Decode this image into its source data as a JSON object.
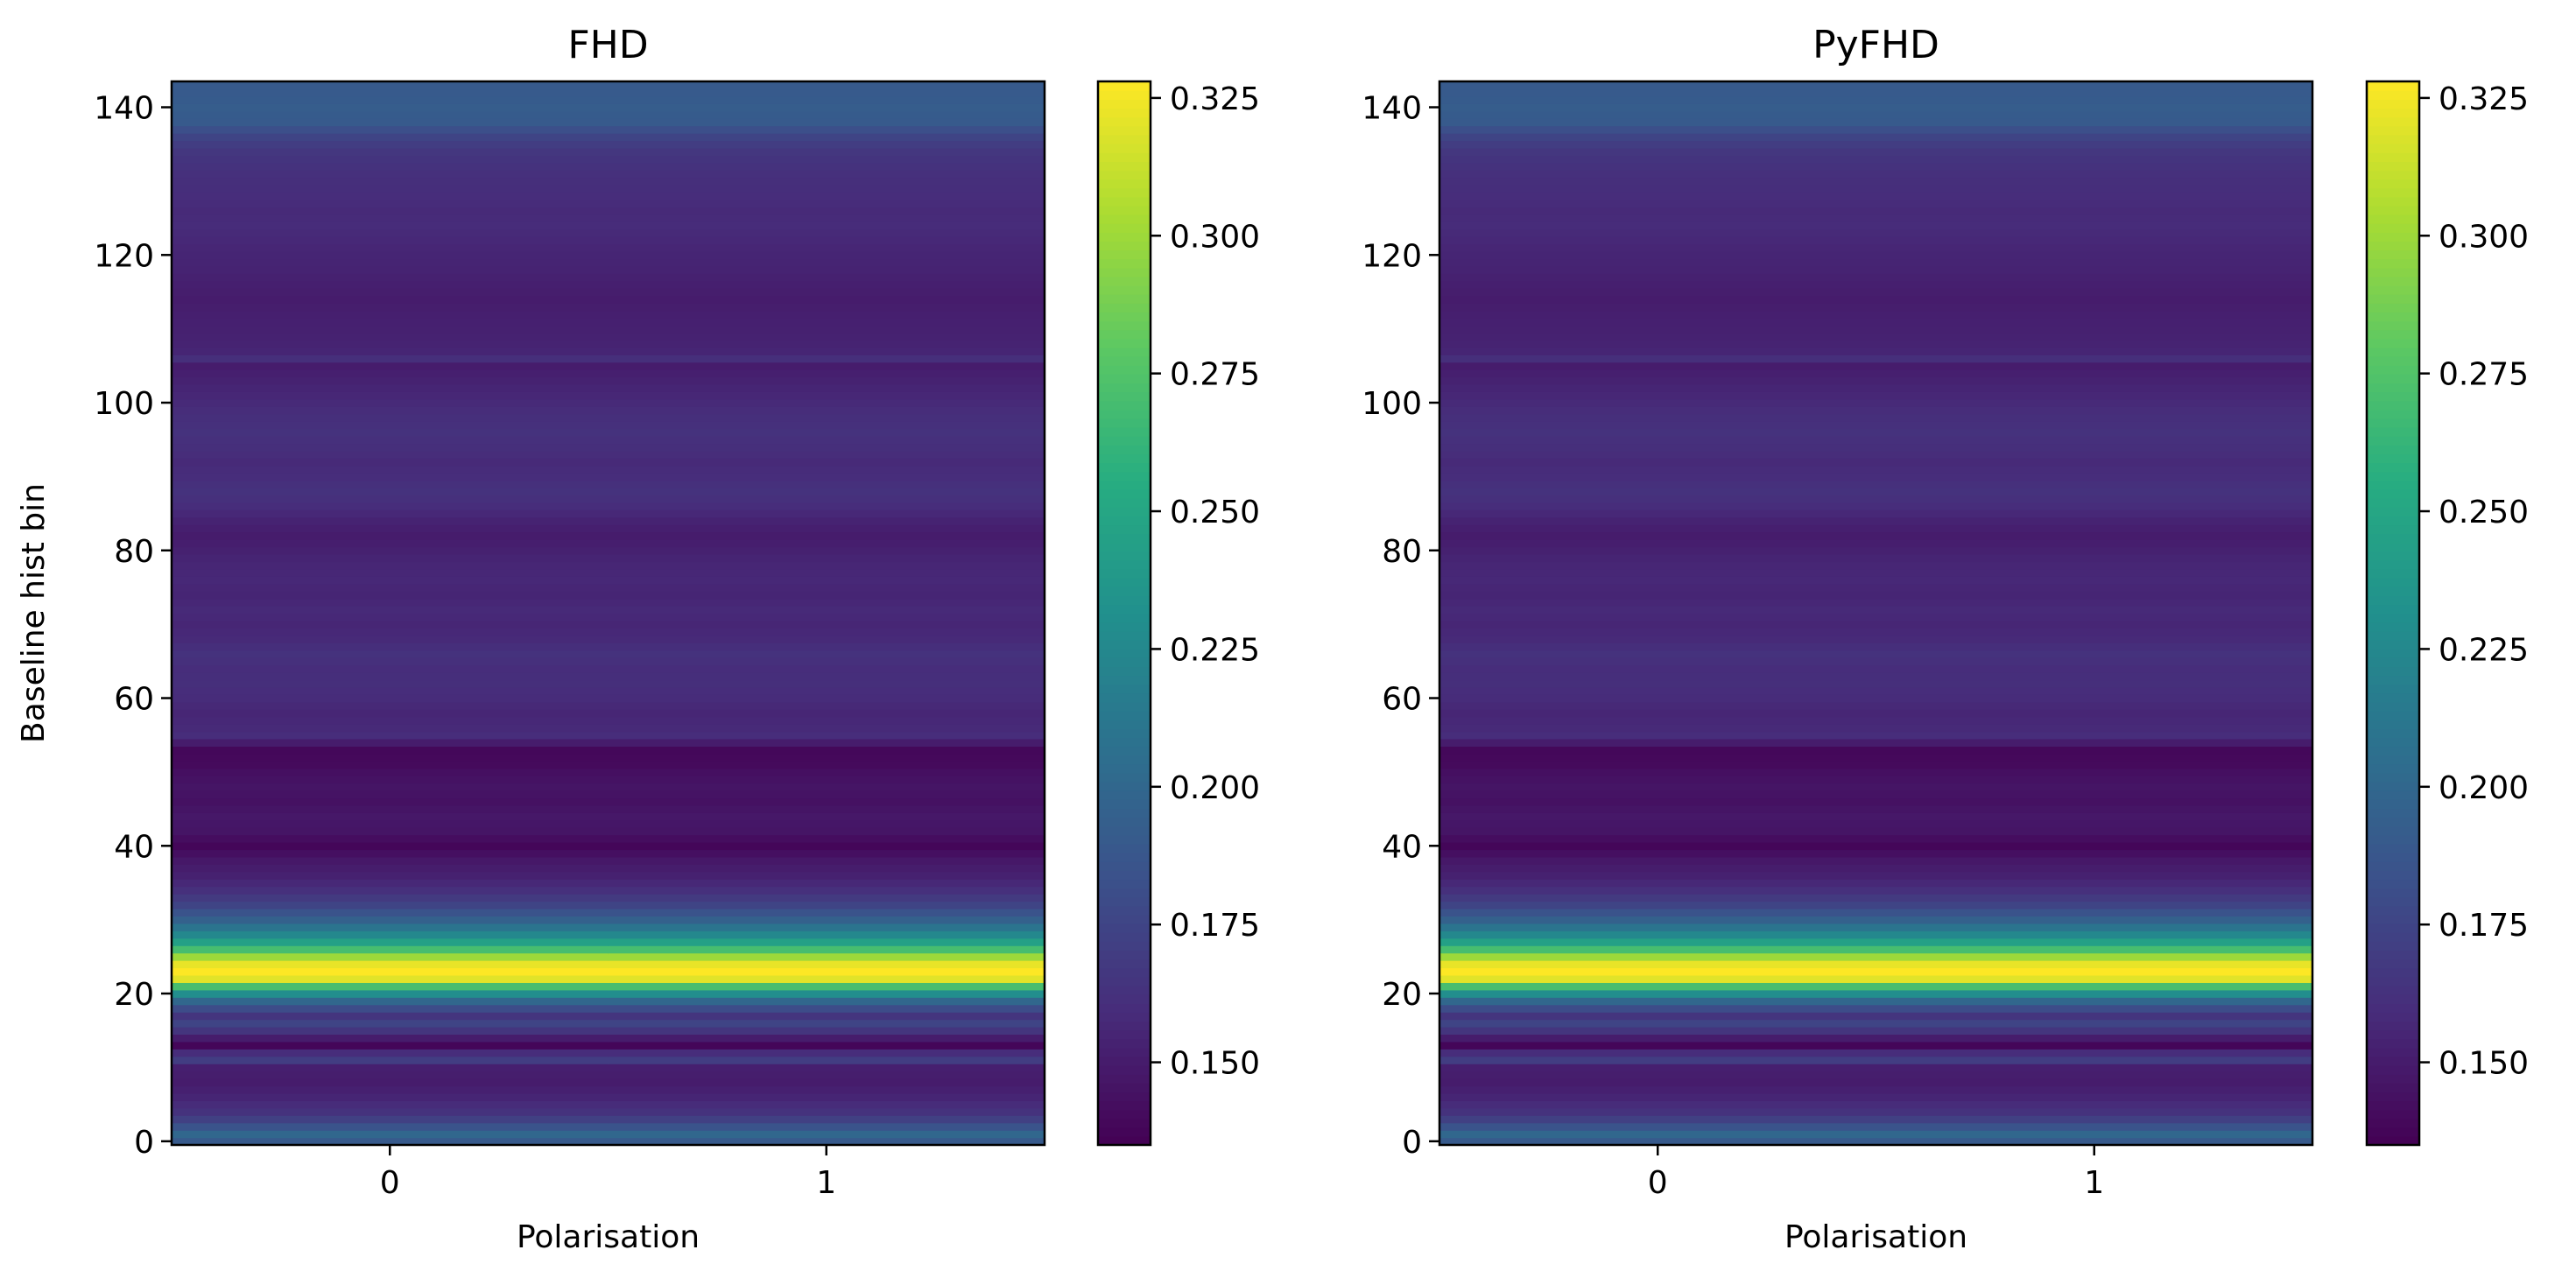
{
  "chart_data": [
    {
      "type": "heatmap",
      "title": "FHD",
      "xlabel": "Polarisation",
      "ylabel": "Baseline hist bin",
      "x_categories": [
        "0",
        "1"
      ],
      "xticks": [
        "0",
        "1"
      ],
      "yticks": [
        "0",
        "20",
        "40",
        "60",
        "80",
        "100",
        "120",
        "140"
      ],
      "ylim": [
        0,
        143
      ],
      "colormap": "viridis",
      "colorbar": {
        "vmin": 0.135,
        "vmax": 0.328,
        "ticks": [
          "0.150",
          "0.175",
          "0.200",
          "0.225",
          "0.250",
          "0.275",
          "0.300",
          "0.325"
        ]
      },
      "profile": [
        [
          0,
          0.19
        ],
        [
          1,
          0.2
        ],
        [
          2,
          0.185
        ],
        [
          3,
          0.172
        ],
        [
          4,
          0.163
        ],
        [
          6,
          0.155
        ],
        [
          8,
          0.15
        ],
        [
          10,
          0.152
        ],
        [
          11,
          0.17
        ],
        [
          12,
          0.16
        ],
        [
          13,
          0.138
        ],
        [
          14,
          0.15
        ],
        [
          15,
          0.165
        ],
        [
          16,
          0.175
        ],
        [
          17,
          0.165
        ],
        [
          18,
          0.18
        ],
        [
          19,
          0.2
        ],
        [
          20,
          0.23
        ],
        [
          21,
          0.27
        ],
        [
          22,
          0.32
        ],
        [
          23,
          0.328
        ],
        [
          24,
          0.322
        ],
        [
          25,
          0.3
        ],
        [
          26,
          0.27
        ],
        [
          27,
          0.245
        ],
        [
          28,
          0.225
        ],
        [
          29,
          0.21
        ],
        [
          30,
          0.195
        ],
        [
          31,
          0.185
        ],
        [
          32,
          0.175
        ],
        [
          33,
          0.168
        ],
        [
          34,
          0.162
        ],
        [
          35,
          0.157
        ],
        [
          36,
          0.153
        ],
        [
          38,
          0.148
        ],
        [
          39,
          0.143
        ],
        [
          40,
          0.138
        ],
        [
          41,
          0.142
        ],
        [
          42,
          0.146
        ],
        [
          44,
          0.148
        ],
        [
          46,
          0.144
        ],
        [
          48,
          0.146
        ],
        [
          50,
          0.143
        ],
        [
          51,
          0.14
        ],
        [
          53,
          0.139
        ],
        [
          54,
          0.15
        ],
        [
          55,
          0.16
        ],
        [
          56,
          0.158
        ],
        [
          58,
          0.156
        ],
        [
          60,
          0.159
        ],
        [
          62,
          0.161
        ],
        [
          64,
          0.16
        ],
        [
          66,
          0.163
        ],
        [
          68,
          0.158
        ],
        [
          70,
          0.156
        ],
        [
          72,
          0.158
        ],
        [
          74,
          0.155
        ],
        [
          76,
          0.157
        ],
        [
          78,
          0.156
        ],
        [
          80,
          0.153
        ],
        [
          82,
          0.15
        ],
        [
          84,
          0.154
        ],
        [
          86,
          0.16
        ],
        [
          88,
          0.163
        ],
        [
          90,
          0.16
        ],
        [
          92,
          0.158
        ],
        [
          94,
          0.161
        ],
        [
          96,
          0.163
        ],
        [
          98,
          0.161
        ],
        [
          100,
          0.158
        ],
        [
          102,
          0.155
        ],
        [
          104,
          0.152
        ],
        [
          105,
          0.15
        ],
        [
          106,
          0.161
        ],
        [
          107,
          0.155
        ],
        [
          110,
          0.153
        ],
        [
          112,
          0.152
        ],
        [
          114,
          0.15
        ],
        [
          116,
          0.152
        ],
        [
          118,
          0.154
        ],
        [
          120,
          0.155
        ],
        [
          122,
          0.157
        ],
        [
          124,
          0.159
        ],
        [
          126,
          0.158
        ],
        [
          128,
          0.16
        ],
        [
          130,
          0.161
        ],
        [
          132,
          0.163
        ],
        [
          134,
          0.166
        ],
        [
          135,
          0.17
        ],
        [
          136,
          0.175
        ],
        [
          137,
          0.182
        ],
        [
          138,
          0.19
        ],
        [
          140,
          0.192
        ],
        [
          142,
          0.19
        ],
        [
          143,
          0.19
        ]
      ]
    },
    {
      "type": "heatmap",
      "title": "PyFHD",
      "xlabel": "Polarisation",
      "ylabel": "",
      "x_categories": [
        "0",
        "1"
      ],
      "xticks": [
        "0",
        "1"
      ],
      "yticks": [
        "0",
        "20",
        "40",
        "60",
        "80",
        "100",
        "120",
        "140"
      ],
      "ylim": [
        0,
        143
      ],
      "colormap": "viridis",
      "colorbar": {
        "vmin": 0.135,
        "vmax": 0.328,
        "ticks": [
          "0.150",
          "0.175",
          "0.200",
          "0.225",
          "0.250",
          "0.275",
          "0.300",
          "0.325"
        ]
      },
      "profile": [
        [
          0,
          0.19
        ],
        [
          1,
          0.2
        ],
        [
          2,
          0.185
        ],
        [
          3,
          0.172
        ],
        [
          4,
          0.163
        ],
        [
          6,
          0.155
        ],
        [
          8,
          0.15
        ],
        [
          10,
          0.152
        ],
        [
          11,
          0.17
        ],
        [
          12,
          0.16
        ],
        [
          13,
          0.138
        ],
        [
          14,
          0.15
        ],
        [
          15,
          0.165
        ],
        [
          16,
          0.175
        ],
        [
          17,
          0.165
        ],
        [
          18,
          0.18
        ],
        [
          19,
          0.2
        ],
        [
          20,
          0.23
        ],
        [
          21,
          0.27
        ],
        [
          22,
          0.32
        ],
        [
          23,
          0.328
        ],
        [
          24,
          0.322
        ],
        [
          25,
          0.3
        ],
        [
          26,
          0.27
        ],
        [
          27,
          0.245
        ],
        [
          28,
          0.225
        ],
        [
          29,
          0.21
        ],
        [
          30,
          0.195
        ],
        [
          31,
          0.185
        ],
        [
          32,
          0.175
        ],
        [
          33,
          0.168
        ],
        [
          34,
          0.162
        ],
        [
          35,
          0.157
        ],
        [
          36,
          0.153
        ],
        [
          38,
          0.148
        ],
        [
          39,
          0.143
        ],
        [
          40,
          0.138
        ],
        [
          41,
          0.142
        ],
        [
          42,
          0.146
        ],
        [
          44,
          0.148
        ],
        [
          46,
          0.144
        ],
        [
          48,
          0.146
        ],
        [
          50,
          0.143
        ],
        [
          51,
          0.14
        ],
        [
          53,
          0.139
        ],
        [
          54,
          0.15
        ],
        [
          55,
          0.16
        ],
        [
          56,
          0.158
        ],
        [
          58,
          0.156
        ],
        [
          60,
          0.159
        ],
        [
          62,
          0.161
        ],
        [
          64,
          0.16
        ],
        [
          66,
          0.163
        ],
        [
          68,
          0.158
        ],
        [
          70,
          0.156
        ],
        [
          72,
          0.158
        ],
        [
          74,
          0.155
        ],
        [
          76,
          0.157
        ],
        [
          78,
          0.156
        ],
        [
          80,
          0.153
        ],
        [
          82,
          0.15
        ],
        [
          84,
          0.154
        ],
        [
          86,
          0.16
        ],
        [
          88,
          0.163
        ],
        [
          90,
          0.16
        ],
        [
          92,
          0.158
        ],
        [
          94,
          0.161
        ],
        [
          96,
          0.163
        ],
        [
          98,
          0.161
        ],
        [
          100,
          0.158
        ],
        [
          102,
          0.155
        ],
        [
          104,
          0.152
        ],
        [
          105,
          0.15
        ],
        [
          106,
          0.161
        ],
        [
          107,
          0.155
        ],
        [
          110,
          0.153
        ],
        [
          112,
          0.152
        ],
        [
          114,
          0.15
        ],
        [
          116,
          0.152
        ],
        [
          118,
          0.154
        ],
        [
          120,
          0.155
        ],
        [
          122,
          0.157
        ],
        [
          124,
          0.159
        ],
        [
          126,
          0.158
        ],
        [
          128,
          0.16
        ],
        [
          130,
          0.161
        ],
        [
          132,
          0.163
        ],
        [
          134,
          0.166
        ],
        [
          135,
          0.17
        ],
        [
          136,
          0.175
        ],
        [
          137,
          0.182
        ],
        [
          138,
          0.19
        ],
        [
          140,
          0.192
        ],
        [
          142,
          0.19
        ],
        [
          143,
          0.19
        ]
      ]
    }
  ]
}
